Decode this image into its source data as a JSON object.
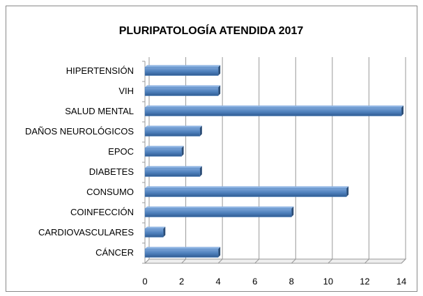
{
  "chart_data": {
    "type": "bar",
    "orientation": "horizontal",
    "title": "PLURIPATOLOGÍA ATENDIDA 2017",
    "categories": [
      "HIPERTENSIÓN",
      "VIH",
      "SALUD MENTAL",
      "DAÑOS NEUROLÓGICOS",
      "EPOC",
      "DIABETES",
      "CONSUMO",
      "COINFECCIÓN",
      "CARDIOVASCULARES",
      "CÁNCER"
    ],
    "values": [
      4,
      4,
      14,
      3,
      2,
      3,
      11,
      8,
      1,
      4
    ],
    "color": "#4f81bd",
    "xlim": [
      0,
      14
    ],
    "xticks": [
      0,
      2,
      4,
      6,
      8,
      10,
      12,
      14
    ],
    "grid": true
  }
}
